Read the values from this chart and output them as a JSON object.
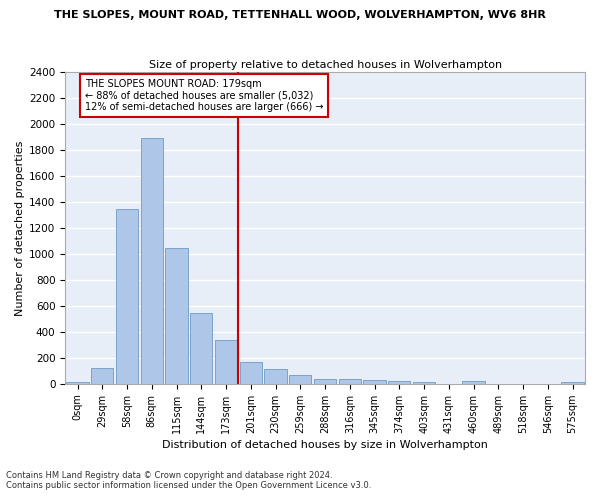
{
  "title": "THE SLOPES, MOUNT ROAD, TETTENHALL WOOD, WOLVERHAMPTON, WV6 8HR",
  "subtitle": "Size of property relative to detached houses in Wolverhampton",
  "xlabel": "Distribution of detached houses by size in Wolverhampton",
  "ylabel": "Number of detached properties",
  "bar_color": "#aec6e8",
  "bar_edge_color": "#5a8fc0",
  "background_color": "#e8eef8",
  "grid_color": "#ffffff",
  "categories": [
    "0sqm",
    "29sqm",
    "58sqm",
    "86sqm",
    "115sqm",
    "144sqm",
    "173sqm",
    "201sqm",
    "230sqm",
    "259sqm",
    "288sqm",
    "316sqm",
    "345sqm",
    "374sqm",
    "403sqm",
    "431sqm",
    "460sqm",
    "489sqm",
    "518sqm",
    "546sqm",
    "575sqm"
  ],
  "values": [
    15,
    125,
    1345,
    1890,
    1045,
    545,
    340,
    170,
    115,
    65,
    40,
    35,
    30,
    25,
    15,
    0,
    20,
    0,
    0,
    0,
    15
  ],
  "ylim": [
    0,
    2400
  ],
  "yticks": [
    0,
    200,
    400,
    600,
    800,
    1000,
    1200,
    1400,
    1600,
    1800,
    2000,
    2200,
    2400
  ],
  "vline_pos": 6.5,
  "annotation_title": "THE SLOPES MOUNT ROAD: 179sqm",
  "annotation_line1": "← 88% of detached houses are smaller (5,032)",
  "annotation_line2": "12% of semi-detached houses are larger (666) →",
  "vline_color": "#cc0000",
  "annotation_box_color": "#cc0000",
  "footer1": "Contains HM Land Registry data © Crown copyright and database right 2024.",
  "footer2": "Contains public sector information licensed under the Open Government Licence v3.0."
}
